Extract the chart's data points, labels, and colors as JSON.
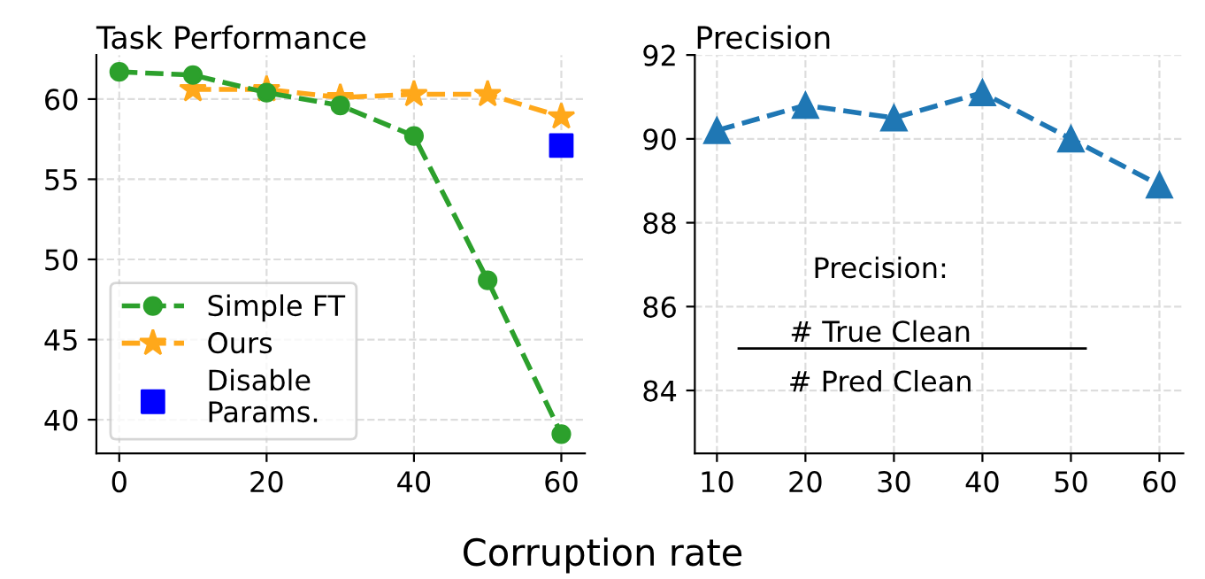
{
  "chart_data": [
    {
      "type": "line",
      "title": "Task Performance",
      "xlabel": "Corruption rate",
      "xlim": [
        -3.1,
        63.2
      ],
      "xticks": [
        0,
        20,
        40,
        60
      ],
      "ylim": [
        37.9,
        62.75
      ],
      "yticks": [
        40,
        45,
        50,
        55,
        60
      ],
      "grid": true,
      "legend": "bottom left",
      "line_style": "dashed",
      "series": [
        {
          "name": "Simple FT",
          "color": "#2ca02c",
          "marker": "circle",
          "x": [
            0,
            10,
            20,
            30,
            40,
            50,
            60
          ],
          "values": [
            61.7,
            61.5,
            60.4,
            59.6,
            57.7,
            48.7,
            39.1
          ]
        },
        {
          "name": "Ours",
          "color": "#ffa81a",
          "marker": "star",
          "x": [
            10,
            20,
            30,
            40,
            50,
            60
          ],
          "values": [
            60.6,
            60.6,
            60.1,
            60.3,
            60.3,
            58.9
          ]
        },
        {
          "name": "Disable\nParams.",
          "type": "scatter",
          "color": "#0000ff",
          "marker": "square",
          "x": [
            60
          ],
          "values": [
            57.1
          ]
        }
      ]
    },
    {
      "type": "line",
      "title": "Precision",
      "xlim": [
        7.5,
        62.7
      ],
      "xticks": [
        10,
        20,
        30,
        40,
        50,
        60
      ],
      "ylim": [
        82.5,
        92
      ],
      "yticks": [
        84,
        86,
        88,
        90,
        92
      ],
      "grid": true,
      "line_style": "dashed",
      "series": [
        {
          "color": "#1f77b4",
          "marker": "triangle",
          "x": [
            10,
            20,
            30,
            40,
            50,
            60
          ],
          "values": [
            90.2,
            90.8,
            90.5,
            91.1,
            90.0,
            88.9
          ]
        }
      ],
      "ref_lines": [
        {
          "axis": "y",
          "value": 85,
          "color": "#000000",
          "line_style": "solid"
        }
      ],
      "annotations": [
        "Precision:",
        "# True Clean",
        "# Pred Clean"
      ]
    }
  ]
}
